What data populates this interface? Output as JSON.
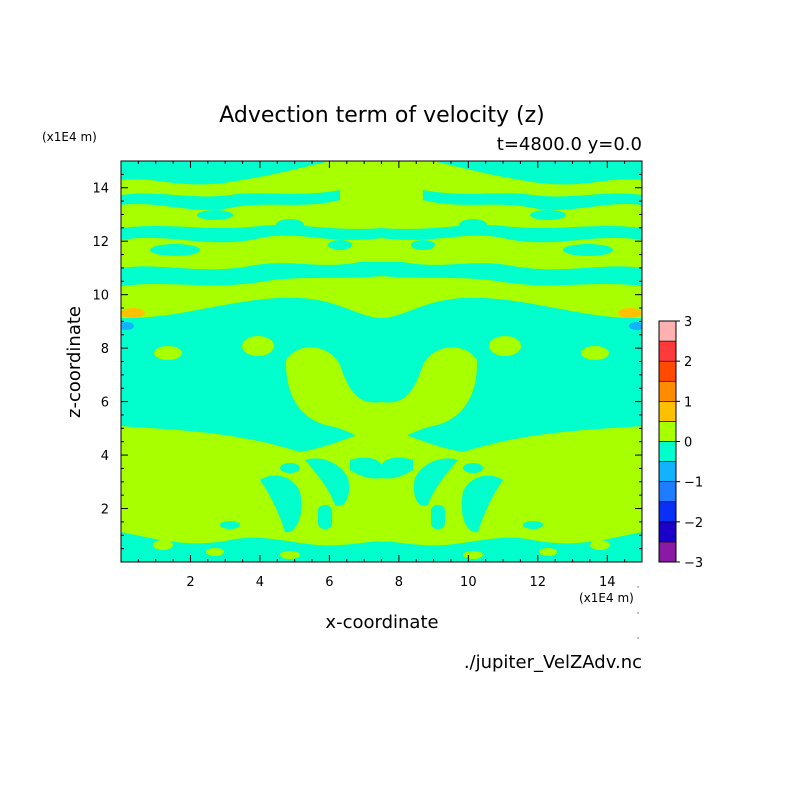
{
  "chart_data": {
    "type": "heatmap",
    "title": "Advection term of velocity (z)",
    "subtitle": "t=4800.0 y=0.0",
    "xlabel": "x-coordinate",
    "ylabel": "z-coordinate",
    "x_unit": "(x1E4 m)",
    "y_unit": "(x1E4 m)",
    "xlim": [
      0,
      15
    ],
    "ylim": [
      0,
      15
    ],
    "x_ticks": [
      2,
      4,
      6,
      8,
      10,
      12,
      14
    ],
    "y_ticks": [
      2,
      4,
      6,
      8,
      10,
      12,
      14
    ],
    "colorbar": {
      "levels": [
        -3,
        -2.5,
        -2,
        -1.5,
        -1,
        -0.5,
        0,
        0.5,
        1,
        1.5,
        2,
        2.5,
        3
      ],
      "colors": [
        "#8a1aa6",
        "#1a00c8",
        "#0a30f5",
        "#1e7cff",
        "#12b2ff",
        "#00ffcc",
        "#a8ff00",
        "#ffc000",
        "#ff8c00",
        "#ff4a00",
        "#ff3a3a",
        "#ffb0b0"
      ],
      "tick_labels": [
        "-3",
        "-2",
        "-1",
        "0",
        "1",
        "2",
        "3"
      ]
    },
    "background_value_color": "#a8ff00",
    "negative_band_color": "#00ffcc",
    "source": "./jupiter_VelZAdv.nc"
  }
}
